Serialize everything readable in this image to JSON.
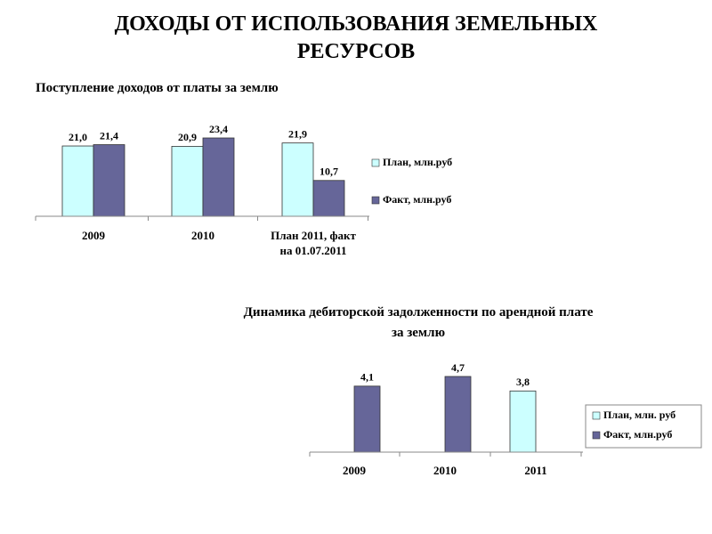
{
  "title": "ДОХОДЫ ОТ ИСПОЛЬЗОВАНИЯ ЗЕМЕЛЬНЫХ РЕСУРСОВ",
  "chart_data": [
    {
      "type": "bar",
      "title": "Поступление доходов от платы за землю",
      "categories": [
        "2009",
        "2010",
        "План 2011, факт на 01.07.2011"
      ],
      "series": [
        {
          "name": "План, млн.руб",
          "color": "#ccffff",
          "values": [
            21.0,
            20.9,
            21.9
          ],
          "value_labels": [
            "21,0",
            "20,9",
            "21,9"
          ]
        },
        {
          "name": "Факт, млн.руб",
          "color": "#666699",
          "values": [
            21.4,
            23.4,
            10.7
          ],
          "value_labels": [
            "21,4",
            "23,4",
            "10,7"
          ]
        }
      ]
    },
    {
      "type": "bar",
      "title": "Динамика дебиторской задолженности по арендной плате за землю",
      "categories": [
        "2009",
        "2010",
        "2011"
      ],
      "series": [
        {
          "name": "План, млн. руб",
          "color": "#ccffff",
          "values": [
            null,
            null,
            3.8
          ],
          "value_labels": [
            null,
            null,
            "3,8"
          ]
        },
        {
          "name": "Факт, млн.руб",
          "color": "#666699",
          "values": [
            4.1,
            4.7,
            null
          ],
          "value_labels": [
            "4,1",
            "4,7",
            null
          ]
        }
      ]
    }
  ]
}
